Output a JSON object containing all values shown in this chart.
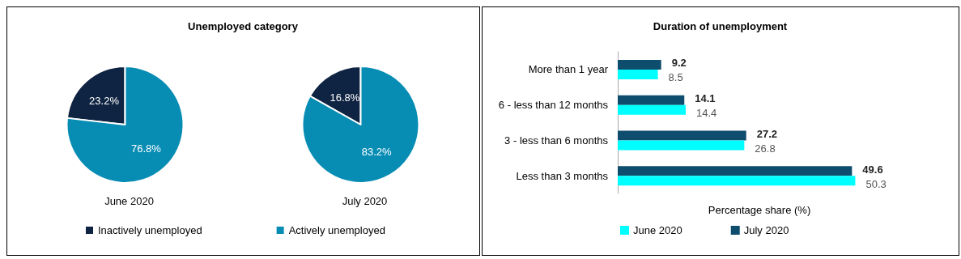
{
  "chart_data": [
    {
      "type": "pie",
      "title": "Unemployed category",
      "categories": [
        "Inactively unemployed",
        "Actively unemployed"
      ],
      "colors": [
        "#0f2342",
        "#078cb4"
      ],
      "legend": "bottom",
      "series": [
        {
          "name": "June 2020",
          "values": [
            23.2,
            76.8
          ],
          "value_labels": [
            "23.2%",
            "76.8%"
          ]
        },
        {
          "name": "July 2020",
          "values": [
            16.8,
            83.2
          ],
          "value_labels": [
            "16.8%",
            "83.2%"
          ]
        }
      ]
    },
    {
      "type": "bar",
      "orientation": "horizontal",
      "title": "Duration of unemployment",
      "xlabel": "Percentage share (%)",
      "categories": [
        "More than 1 year",
        "6 - less than 12 months",
        "3 - less than 6 months",
        "Less than 3 months"
      ],
      "series": [
        {
          "name": "June 2020",
          "color": "#00ffff",
          "values": [
            8.5,
            14.4,
            26.8,
            50.3
          ]
        },
        {
          "name": "July 2020",
          "color": "#0e4d6e",
          "values": [
            9.2,
            14.1,
            27.2,
            49.6
          ]
        }
      ],
      "data_labels": true,
      "legend": "bottom",
      "grid": false
    }
  ]
}
